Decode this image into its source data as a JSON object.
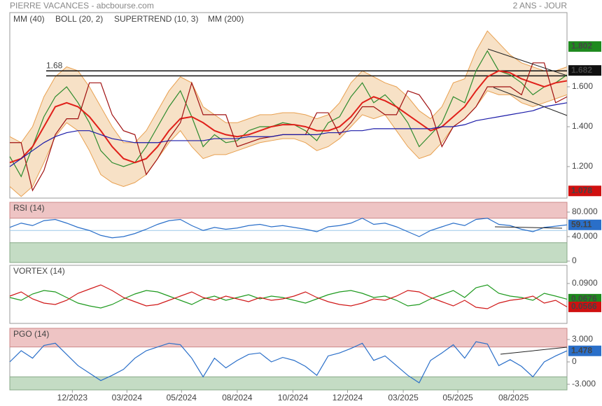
{
  "header": {
    "title": "PIERRE VACANCES - abcbourse.com",
    "period": "2 ANS - JOUR"
  },
  "chart_data": [
    {
      "type": "line",
      "xlim": [
        0,
        49
      ],
      "xticks": [
        {
          "value": 5.5,
          "label": "12/2023"
        },
        {
          "value": 10.3,
          "label": "03/2024"
        },
        {
          "value": 15.1,
          "label": "05/2024"
        },
        {
          "value": 20.0,
          "label": "08/2024"
        },
        {
          "value": 24.9,
          "label": "10/2024"
        },
        {
          "value": 29.7,
          "label": "12/2024"
        },
        {
          "value": 34.6,
          "label": "03/2025"
        },
        {
          "value": 39.4,
          "label": "05/2025"
        },
        {
          "value": 44.3,
          "label": "08/2025"
        }
      ],
      "ylim": [
        1.042,
        1.972
      ],
      "yticks": [
        {
          "value": 1.2,
          "label": "1.200"
        },
        {
          "value": 1.4,
          "label": "1.400"
        },
        {
          "value": 1.6,
          "label": "1.600"
        }
      ],
      "series": [
        {
          "color": "#2e8b2e",
          "values": [
            1.25,
            1.15,
            1.3,
            1.45,
            1.55,
            1.6,
            1.52,
            1.42,
            1.28,
            1.22,
            1.2,
            1.22,
            1.3,
            1.4,
            1.5,
            1.58,
            1.45,
            1.3,
            1.36,
            1.32,
            1.33,
            1.38,
            1.4,
            1.4,
            1.42,
            1.41,
            1.38,
            1.33,
            1.42,
            1.45,
            1.55,
            1.62,
            1.52,
            1.56,
            1.5,
            1.42,
            1.3,
            1.36,
            1.42,
            1.55,
            1.52,
            1.68,
            1.78,
            1.68,
            1.66,
            1.62,
            1.56,
            1.6,
            1.62,
            1.66
          ]
        },
        {
          "name": "MM (40)",
          "color": "#e0201a",
          "values": [
            1.22,
            1.24,
            1.3,
            1.4,
            1.5,
            1.52,
            1.5,
            1.45,
            1.38,
            1.3,
            1.24,
            1.22,
            1.24,
            1.3,
            1.38,
            1.44,
            1.45,
            1.42,
            1.38,
            1.36,
            1.35,
            1.36,
            1.38,
            1.4,
            1.41,
            1.41,
            1.4,
            1.38,
            1.38,
            1.4,
            1.45,
            1.52,
            1.55,
            1.53,
            1.5,
            1.46,
            1.42,
            1.38,
            1.4,
            1.45,
            1.5,
            1.58,
            1.65,
            1.68,
            1.67,
            1.64,
            1.62,
            1.6,
            1.62,
            1.63
          ]
        },
        {
          "name": "SUPERTREND (10, 3)",
          "color": "#a01010",
          "values": [
            1.32,
            1.32,
            1.08,
            1.18,
            1.36,
            1.44,
            1.44,
            1.62,
            1.62,
            1.46,
            1.38,
            1.36,
            1.16,
            1.24,
            1.34,
            1.42,
            1.62,
            1.46,
            1.46,
            1.46,
            1.3,
            1.32,
            1.34,
            1.35,
            1.36,
            1.36,
            1.36,
            1.47,
            1.47,
            1.36,
            1.42,
            1.5,
            1.5,
            1.46,
            1.46,
            1.58,
            1.56,
            1.48,
            1.3,
            1.4,
            1.44,
            1.5,
            1.6,
            1.6,
            1.6,
            1.56,
            1.72,
            1.72,
            1.52,
            1.55
          ]
        },
        {
          "name": "MM (200)",
          "color": "#1a1aa8",
          "values": [
            1.2,
            1.24,
            1.28,
            1.32,
            1.35,
            1.37,
            1.38,
            1.38,
            1.36,
            1.34,
            1.33,
            1.32,
            1.32,
            1.32,
            1.33,
            1.33,
            1.33,
            1.33,
            1.34,
            1.34,
            1.34,
            1.35,
            1.35,
            1.35,
            1.36,
            1.36,
            1.36,
            1.36,
            1.37,
            1.37,
            1.38,
            1.38,
            1.39,
            1.39,
            1.39,
            1.39,
            1.39,
            1.39,
            1.4,
            1.4,
            1.41,
            1.43,
            1.44,
            1.45,
            1.46,
            1.47,
            1.48,
            1.5,
            1.51,
            1.52
          ]
        }
      ],
      "bands": [
        {
          "name": "BOLL (20, 2)",
          "color": "#e8a050",
          "upper": [
            1.35,
            1.32,
            1.4,
            1.55,
            1.65,
            1.7,
            1.68,
            1.6,
            1.5,
            1.4,
            1.32,
            1.32,
            1.38,
            1.48,
            1.58,
            1.65,
            1.62,
            1.5,
            1.46,
            1.42,
            1.42,
            1.44,
            1.46,
            1.46,
            1.47,
            1.47,
            1.46,
            1.44,
            1.46,
            1.52,
            1.62,
            1.68,
            1.65,
            1.62,
            1.6,
            1.55,
            1.48,
            1.44,
            1.5,
            1.62,
            1.64,
            1.78,
            1.88,
            1.82,
            1.76,
            1.72,
            1.7,
            1.68,
            1.68,
            1.7
          ],
          "lower": [
            1.1,
            1.05,
            1.1,
            1.22,
            1.35,
            1.42,
            1.38,
            1.28,
            1.16,
            1.12,
            1.1,
            1.12,
            1.16,
            1.24,
            1.32,
            1.38,
            1.3,
            1.24,
            1.26,
            1.26,
            1.28,
            1.3,
            1.32,
            1.33,
            1.34,
            1.34,
            1.32,
            1.28,
            1.3,
            1.34,
            1.4,
            1.46,
            1.44,
            1.46,
            1.38,
            1.3,
            1.24,
            1.26,
            1.32,
            1.4,
            1.44,
            1.5,
            1.58,
            1.56,
            1.56,
            1.52,
            1.5,
            1.52,
            1.54,
            1.56
          ]
        }
      ],
      "hlines": [
        {
          "value": 1.68
        },
        {
          "value": 1.655
        }
      ],
      "markers": [
        {
          "value": 1.802,
          "color": "#1e8a1e"
        },
        {
          "value": 1.682,
          "color": "#111111"
        },
        {
          "value": 1.078,
          "color": "#d01010"
        }
      ]
    },
    {
      "type": "line",
      "title": "RSI (14)",
      "xlim": [
        0,
        49
      ],
      "ylim": [
        -2.3,
        96
      ],
      "yticks": [
        {
          "value": 80,
          "label": "80.000"
        },
        {
          "value": 40,
          "label": "40.000"
        },
        0
      ],
      "overbought": 70,
      "oversold": 30,
      "midline": 50,
      "series": [
        {
          "color": "#2a6fc9",
          "values": [
            55,
            62,
            58,
            66,
            68,
            62,
            55,
            50,
            42,
            38,
            40,
            45,
            52,
            60,
            66,
            68,
            58,
            50,
            55,
            52,
            54,
            58,
            60,
            56,
            58,
            55,
            52,
            48,
            56,
            58,
            62,
            70,
            60,
            62,
            56,
            48,
            40,
            50,
            56,
            62,
            58,
            68,
            70,
            60,
            58,
            52,
            48,
            55,
            57,
            59.11
          ]
        }
      ],
      "markers": [
        {
          "value": 59.11,
          "color": "#2a6fc9"
        }
      ]
    },
    {
      "type": "line",
      "title": "VORTEX (14)",
      "xlim": [
        0,
        49
      ],
      "ylim": [
        0.033,
        0.116
      ],
      "yticks": [
        {
          "value": 0.09,
          "label": "0.0900"
        }
      ],
      "series": [
        {
          "color": "#1e9a1e",
          "values": [
            0.07,
            0.066,
            0.075,
            0.08,
            0.078,
            0.07,
            0.062,
            0.058,
            0.055,
            0.06,
            0.068,
            0.075,
            0.08,
            0.078,
            0.072,
            0.066,
            0.06,
            0.068,
            0.072,
            0.066,
            0.07,
            0.074,
            0.068,
            0.072,
            0.07,
            0.066,
            0.062,
            0.068,
            0.074,
            0.078,
            0.08,
            0.076,
            0.07,
            0.072,
            0.066,
            0.058,
            0.06,
            0.068,
            0.074,
            0.08,
            0.07,
            0.084,
            0.088,
            0.076,
            0.072,
            0.07,
            0.066,
            0.076,
            0.072,
            0.0676
          ]
        },
        {
          "color": "#d01818",
          "values": [
            0.072,
            0.078,
            0.068,
            0.062,
            0.06,
            0.066,
            0.076,
            0.082,
            0.088,
            0.08,
            0.07,
            0.064,
            0.058,
            0.06,
            0.066,
            0.072,
            0.078,
            0.07,
            0.066,
            0.072,
            0.068,
            0.064,
            0.07,
            0.066,
            0.068,
            0.072,
            0.078,
            0.07,
            0.064,
            0.06,
            0.058,
            0.062,
            0.068,
            0.066,
            0.072,
            0.08,
            0.078,
            0.07,
            0.064,
            0.058,
            0.066,
            0.056,
            0.054,
            0.062,
            0.066,
            0.068,
            0.072,
            0.062,
            0.066,
            0.0566
          ]
        }
      ],
      "markers": [
        {
          "value": 0.0676,
          "color": "#1e8a1e"
        },
        {
          "value": 0.0566,
          "color": "#d01010"
        }
      ]
    },
    {
      "type": "line",
      "title": "PGO (14)",
      "xlim": [
        0,
        49
      ],
      "ylim": [
        -3.75,
        4.5
      ],
      "yticks": [
        {
          "value": 3,
          "label": "3.000"
        },
        0,
        {
          "value": -3,
          "label": "-3.000"
        }
      ],
      "overbought": 2,
      "oversold": -2,
      "series": [
        {
          "color": "#2a6fc9",
          "values": [
            0,
            1.5,
            0.5,
            2.2,
            2.5,
            1.0,
            -0.5,
            -1.5,
            -2.5,
            -1.8,
            -1.0,
            0.5,
            1.5,
            2.0,
            2.5,
            2.3,
            0.5,
            -2.0,
            0.5,
            -0.8,
            0.2,
            1.0,
            1.2,
            0.0,
            0.6,
            0.2,
            -0.6,
            -1.8,
            0.8,
            1.2,
            1.8,
            2.5,
            0.2,
            0.8,
            -0.5,
            -1.8,
            -2.8,
            0.2,
            1.2,
            2.3,
            0.5,
            2.7,
            2.4,
            -0.5,
            0.3,
            -0.6,
            -2.0,
            0.0,
            0.8,
            1.478
          ]
        }
      ],
      "markers": [
        {
          "value": 1.478,
          "color": "#2a6fc9"
        }
      ]
    }
  ]
}
